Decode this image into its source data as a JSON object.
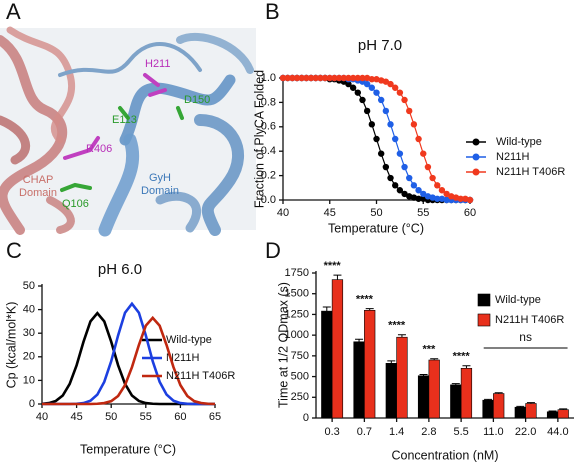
{
  "structure_panel": {
    "letter": "A",
    "residues": [
      {
        "label": "H211",
        "color": "#b82fb8"
      },
      {
        "label": "D150",
        "color": "#2a9a2a"
      },
      {
        "label": "E113",
        "color": "#2a9a2a"
      },
      {
        "label": "R406",
        "color": "#b82fb8"
      },
      {
        "label": "Q106",
        "color": "#2a9a2a"
      }
    ],
    "domains": [
      {
        "lines": [
          "CHAP",
          "Domain"
        ],
        "color": "#c8706a"
      },
      {
        "lines": [
          "GyH",
          "Domain"
        ],
        "color": "#3c78b8"
      }
    ]
  },
  "chart_data": [
    {
      "type": "line",
      "panel": "B",
      "title": "pH 7.0",
      "xlabel": "Temperature (°C)",
      "ylabel": "Fraction of PlyCA Folded",
      "markers": true,
      "x": [
        40,
        40.5,
        41,
        41.5,
        42,
        42.5,
        43,
        43.5,
        44,
        44.5,
        45,
        45.5,
        46,
        46.5,
        47,
        47.5,
        48,
        48.5,
        49,
        49.5,
        50,
        50.5,
        51,
        51.5,
        52,
        52.5,
        53,
        53.5,
        54,
        54.5,
        55,
        55.5,
        56,
        56.5,
        57,
        57.5,
        58,
        58.5,
        59,
        59.5,
        60
      ],
      "series": [
        {
          "name": "Wild-type",
          "color": "#000000",
          "values": [
            1,
            1,
            1,
            1,
            1,
            1,
            1,
            1,
            1,
            1,
            0.99,
            0.99,
            0.98,
            0.97,
            0.95,
            0.92,
            0.88,
            0.82,
            0.73,
            0.62,
            0.5,
            0.38,
            0.27,
            0.18,
            0.12,
            0.08,
            0.05,
            0.03,
            0.02,
            0.01,
            0.01,
            0,
            0,
            0,
            0,
            0,
            0,
            0,
            0,
            0,
            0
          ]
        },
        {
          "name": "N211H",
          "color": "#1f5fe6",
          "values": [
            1,
            1,
            1,
            1,
            1,
            1,
            1,
            1,
            1,
            1,
            1,
            1,
            1,
            1,
            0.99,
            0.99,
            0.98,
            0.97,
            0.95,
            0.92,
            0.88,
            0.82,
            0.73,
            0.62,
            0.5,
            0.38,
            0.27,
            0.18,
            0.12,
            0.08,
            0.05,
            0.03,
            0.02,
            0.01,
            0.01,
            0,
            0,
            0,
            0,
            0,
            0
          ]
        },
        {
          "name": "N211H T406R",
          "color": "#f0391e",
          "values": [
            1,
            1,
            1,
            1,
            1,
            1,
            1,
            1,
            1,
            1,
            1,
            1,
            1,
            1,
            1,
            1,
            1,
            1,
            1,
            0.99,
            0.99,
            0.98,
            0.97,
            0.95,
            0.92,
            0.88,
            0.82,
            0.73,
            0.62,
            0.5,
            0.38,
            0.27,
            0.18,
            0.12,
            0.08,
            0.05,
            0.03,
            0.02,
            0.01,
            0.01,
            0
          ]
        }
      ],
      "xlim": [
        40,
        60
      ],
      "xticks": [
        40,
        45,
        50,
        55,
        60
      ],
      "ylim": [
        0,
        1
      ],
      "yticks": [
        {
          "value": 0,
          "label": "0.0"
        },
        0.2,
        0.4,
        0.6,
        0.8,
        {
          "value": 1,
          "label": "1.0"
        }
      ]
    },
    {
      "type": "line",
      "panel": "C",
      "title": "pH 6.0",
      "xlabel": "Temperature (°C)",
      "ylabel": "Cp (kcal/mol*K)",
      "markers": false,
      "x": [
        40,
        41,
        42,
        43,
        44,
        45,
        46,
        47,
        48,
        49,
        50,
        51,
        52,
        53,
        54,
        55,
        56,
        57,
        58,
        59,
        60,
        61,
        62,
        63,
        64,
        65
      ],
      "series": [
        {
          "name": "Wild-type",
          "color": "#000000",
          "values": [
            0.1,
            0.4,
            1.3,
            3.6,
            8.5,
            16.4,
            26.4,
            35.0,
            38.5,
            35.0,
            26.4,
            16.4,
            8.5,
            3.6,
            1.3,
            0.4,
            0.1,
            0,
            0,
            0,
            0,
            0,
            0,
            0,
            0,
            0
          ]
        },
        {
          "name": "N211H",
          "color": "#1c3fe0",
          "values": [
            0,
            0,
            0,
            0,
            0,
            0.1,
            0.4,
            1.4,
            4.0,
            9.4,
            18.1,
            29.1,
            38.7,
            42.5,
            38.7,
            29.1,
            18.1,
            9.4,
            4.0,
            1.4,
            0.4,
            0.1,
            0,
            0,
            0,
            0
          ]
        },
        {
          "name": "N211H T406R",
          "color": "#c02810",
          "values": [
            0,
            0,
            0,
            0,
            0,
            0,
            0,
            0,
            0.1,
            0.4,
            1.2,
            3.4,
            8.0,
            15.6,
            25.0,
            33.2,
            36.5,
            33.2,
            25.0,
            15.6,
            8.0,
            3.4,
            1.2,
            0.4,
            0.1,
            0
          ]
        }
      ],
      "xlim": [
        40,
        65
      ],
      "xticks": [
        40,
        45,
        50,
        55,
        60,
        65
      ],
      "ylim": [
        0,
        50
      ],
      "yticks": [
        0,
        10,
        20,
        30,
        40,
        50
      ]
    },
    {
      "type": "bar",
      "panel": "D",
      "xlabel": "Concentration (nM)",
      "ylabel": "Time at 1/2 ODmax (s)",
      "categories": [
        "0.3",
        "0.7",
        "1.4",
        "2.8",
        "5.5",
        "11.0",
        "22.0",
        "44.0"
      ],
      "series": [
        {
          "name": "Wild-type",
          "color": "#000000",
          "values": [
            1290,
            920,
            660,
            510,
            400,
            215,
            130,
            75
          ],
          "errors": [
            50,
            30,
            30,
            15,
            15,
            10,
            10,
            10
          ]
        },
        {
          "name": "N211H T406R",
          "color": "#e8301c",
          "values": [
            1670,
            1300,
            975,
            700,
            600,
            295,
            175,
            100
          ],
          "errors": [
            55,
            20,
            30,
            15,
            30,
            10,
            10,
            10
          ]
        }
      ],
      "significance": [
        "****",
        "****",
        "****",
        "***",
        "****",
        null,
        null,
        null
      ],
      "group_note": "ns",
      "ylim": [
        0,
        1750
      ],
      "yticks": [
        0,
        250,
        500,
        750,
        1000,
        1250,
        1500,
        1750
      ]
    }
  ]
}
